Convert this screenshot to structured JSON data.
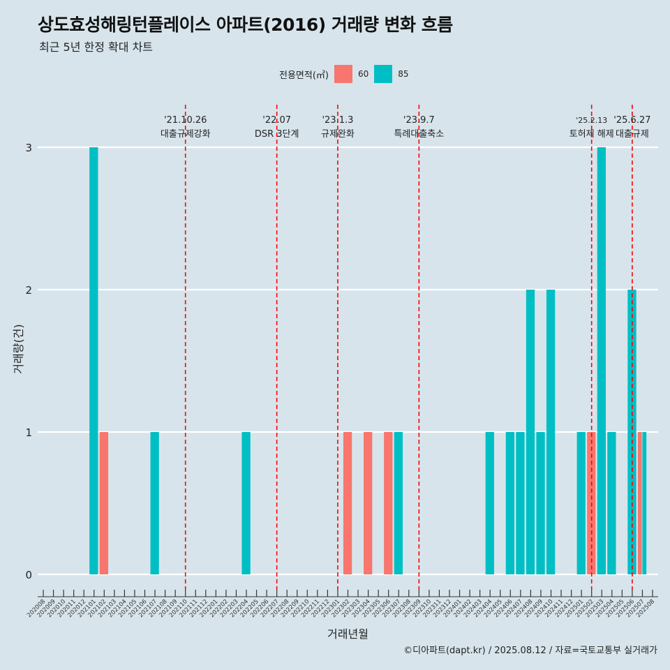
{
  "title": "상도효성해링턴플레이스 아파트(2016) 거래량 변화 흐름",
  "subtitle": "최근 5년 한정 확대 차트",
  "caption": "©디아파트(dapt.kr) / 2025.08.12 / 자료=국토교통부 실거래가",
  "legend": {
    "title": "전용면적(㎡)",
    "items": [
      {
        "label": "60",
        "color": "#F8766D"
      },
      {
        "label": "85",
        "color": "#00BFC4"
      }
    ]
  },
  "chart_data": {
    "type": "bar",
    "xlabel": "거래년월",
    "ylabel": "거래량(건)",
    "ylim": [
      0,
      3
    ],
    "yticks": [
      0,
      1,
      2,
      3
    ],
    "categories": [
      "202008",
      "202009",
      "202010",
      "202011",
      "202012",
      "202101",
      "202102",
      "202103",
      "202104",
      "202105",
      "202106",
      "202107",
      "202108",
      "202109",
      "202110",
      "202111",
      "202112",
      "202201",
      "202202",
      "202203",
      "202204",
      "202205",
      "202206",
      "202207",
      "202208",
      "202209",
      "202210",
      "202211",
      "202212",
      "202301",
      "202302",
      "202303",
      "202304",
      "202305",
      "202306",
      "202307",
      "202308",
      "202309",
      "202310",
      "202311",
      "202312",
      "202401",
      "202402",
      "202403",
      "202404",
      "202405",
      "202406",
      "202407",
      "202408",
      "202409",
      "202410",
      "202411",
      "202412",
      "202501",
      "202502",
      "202503",
      "202504",
      "202505",
      "202506",
      "202507",
      "202508"
    ],
    "series": [
      {
        "name": "60",
        "color": "#F8766D",
        "values": [
          0,
          0,
          0,
          0,
          0,
          0,
          1,
          0,
          0,
          0,
          0,
          0,
          0,
          0,
          0,
          0,
          0,
          0,
          0,
          0,
          0,
          0,
          0,
          0,
          0,
          0,
          0,
          0,
          0,
          0,
          1,
          0,
          1,
          0,
          1,
          0,
          0,
          0,
          0,
          0,
          0,
          0,
          0,
          0,
          0,
          0,
          0,
          0,
          0,
          0,
          0,
          0,
          0,
          0,
          1,
          0,
          0,
          0,
          0,
          1,
          0
        ]
      },
      {
        "name": "85",
        "color": "#00BFC4",
        "values": [
          0,
          0,
          0,
          0,
          0,
          3,
          0,
          0,
          0,
          0,
          0,
          1,
          0,
          0,
          0,
          0,
          0,
          0,
          0,
          0,
          1,
          0,
          0,
          0,
          0,
          0,
          0,
          0,
          0,
          0,
          0,
          0,
          0,
          0,
          0,
          1,
          0,
          0,
          0,
          0,
          0,
          0,
          0,
          0,
          1,
          0,
          1,
          1,
          2,
          1,
          2,
          0,
          0,
          1,
          0,
          3,
          1,
          0,
          2,
          1,
          0
        ]
      }
    ],
    "bar_layout": "dodge",
    "annotations": [
      {
        "date": "'21.10.26",
        "label": "대출규제강화",
        "at": "202110"
      },
      {
        "date": "'22.07",
        "label": "DSR 3단계",
        "at": "202207"
      },
      {
        "date": "'23.1.3",
        "label": "규제완화",
        "at": "202301"
      },
      {
        "date": "'23.9.7",
        "label": "특례대출축소",
        "at": "202309"
      },
      {
        "date": "'25.2.13",
        "label": "토허제 해제",
        "at": "202502"
      },
      {
        "date": "'25.6.27",
        "label": "대출규제",
        "at": "202506"
      }
    ],
    "vline_color": "#FF0000",
    "grid": "horizontal major only",
    "legend_position": "top"
  }
}
